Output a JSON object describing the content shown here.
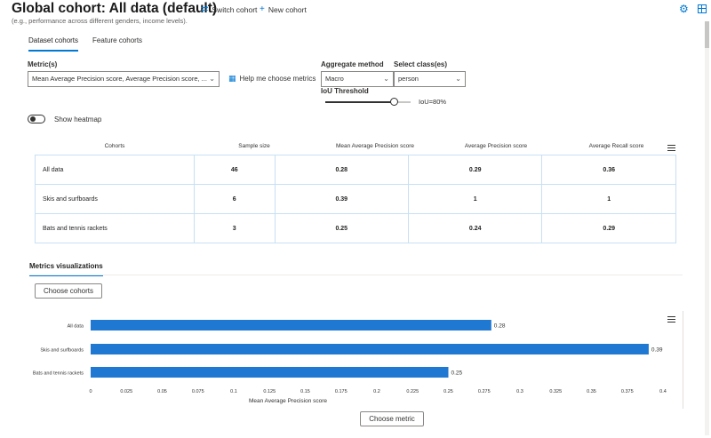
{
  "header": {
    "title": "Global cohort: All data (default)",
    "switch_cohort": "Switch cohort",
    "new_cohort": "New cohort",
    "subtext": "(e.g., performance across different genders, income levels)."
  },
  "tabs": [
    "Dataset cohorts",
    "Feature cohorts"
  ],
  "controls": {
    "metrics_label": "Metric(s)",
    "metrics_value": "Mean Average Precision score, Average Precision score, ...",
    "help_label": "Help me choose metrics",
    "aggregate_label": "Aggregate method",
    "aggregate_value": "Macro",
    "class_label": "Select class(es)",
    "class_value": "person",
    "iou_label": "IoU Threshold",
    "iou_value_text": "IoU=80%",
    "iou_fraction": 0.8,
    "heatmap_label": "Show heatmap"
  },
  "table": {
    "headers": [
      "Cohorts",
      "Sample size",
      "Mean Average Precision score",
      "Average Precision score",
      "Average Recall score"
    ],
    "rows": [
      [
        "All data",
        "46",
        "0.28",
        "0.29",
        "0.36"
      ],
      [
        "Skis and surfboards",
        "6",
        "0.39",
        "1",
        "1"
      ],
      [
        "Bats and tennis rackets",
        "3",
        "0.25",
        "0.24",
        "0.29"
      ]
    ]
  },
  "metrics_viz": {
    "tab": "Metrics visualizations",
    "choose_cohorts": "Choose cohorts",
    "choose_metric": "Choose metric"
  },
  "colors": {
    "accent": "#0078d4",
    "bar": "#1f78d1",
    "table_border": "#c7e0f4"
  },
  "chart_data": {
    "type": "bar",
    "orientation": "horizontal",
    "categories": [
      "All data",
      "Skis and surfboards",
      "Bats and tennis rackets"
    ],
    "values": [
      0.28,
      0.39,
      0.25
    ],
    "data_labels": [
      "0.28",
      "0.39",
      "0.25"
    ],
    "xlabel": "Mean Average Precision score",
    "xlim": [
      0,
      0.4
    ],
    "xticks": [
      "0",
      "0.025",
      "0.05",
      "0.075",
      "0.1",
      "0.125",
      "0.15",
      "0.175",
      "0.2",
      "0.225",
      "0.25",
      "0.275",
      "0.3",
      "0.325",
      "0.35",
      "0.375",
      "0.4"
    ]
  }
}
